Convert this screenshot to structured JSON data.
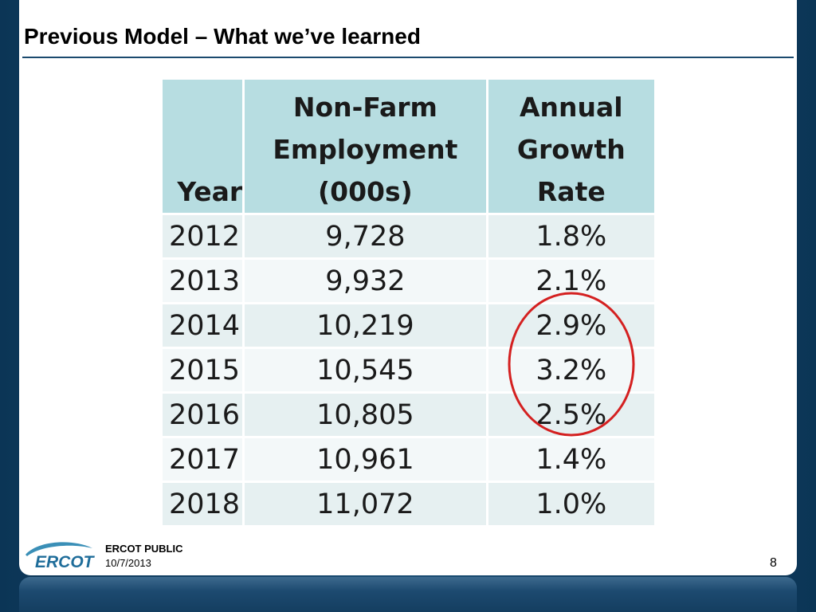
{
  "slide": {
    "title": "Previous Model – What we’ve learned",
    "page_number": "8"
  },
  "table": {
    "headers": [
      {
        "line1": "",
        "line2": "",
        "line3": "Year"
      },
      {
        "line1": "Non-Farm",
        "line2": "Employment",
        "line3": "(000s)"
      },
      {
        "line1": "Annual",
        "line2": "Growth",
        "line3": "Rate"
      }
    ],
    "rows": [
      {
        "year": "2012",
        "employment": "9,728",
        "growth": "1.8%"
      },
      {
        "year": "2013",
        "employment": "9,932",
        "growth": "2.1%"
      },
      {
        "year": "2014",
        "employment": "10,219",
        "growth": "2.9%"
      },
      {
        "year": "2015",
        "employment": "10,545",
        "growth": "3.2%"
      },
      {
        "year": "2016",
        "employment": "10,805",
        "growth": "2.5%"
      },
      {
        "year": "2017",
        "employment": "10,961",
        "growth": "1.4%"
      },
      {
        "year": "2018",
        "employment": "11,072",
        "growth": "1.0%"
      }
    ],
    "highlighted_rows": [
      "2014",
      "2015",
      "2016"
    ]
  },
  "footer": {
    "logo_text": "ERCOT",
    "classification": "ERCOT PUBLIC",
    "date": "10/7/2013"
  },
  "colors": {
    "header_fill": "#b7dde1",
    "row_fill_odd": "#e6f0f1",
    "row_fill_even": "#f3f8f9",
    "highlight_ellipse": "#d42020",
    "frame": "#0d3a5c"
  }
}
